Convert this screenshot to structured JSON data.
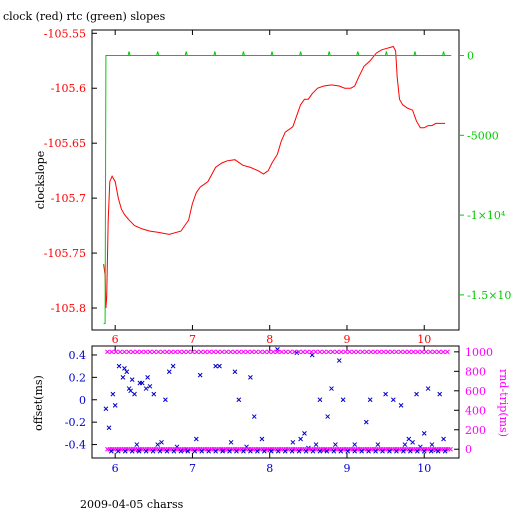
{
  "chart_data": [
    {
      "type": "line",
      "title": "clock (red) rtc (green) slopes",
      "ylabel": "clockslope",
      "xlim": [
        5.7,
        10.45
      ],
      "x_ticks": [
        "6",
        "7",
        "8",
        "9",
        "10"
      ],
      "ylim_left": [
        -105.82,
        -105.547
      ],
      "ylim_right": [
        -17200,
        1600
      ],
      "left_ticks": [
        "-105.55",
        "-105.6",
        "-105.65",
        "-105.7",
        "-105.75",
        "-105.8"
      ],
      "right_ticks": [
        "0",
        "-5000",
        "-1×10⁴",
        "-1.5×10⁴"
      ],
      "colors": {
        "clock": "#ff0000",
        "rtc": "#00cc00"
      },
      "series": [
        {
          "name": "clock",
          "axis": "left",
          "x": [
            5.85,
            5.87,
            5.88,
            5.89,
            5.91,
            5.93,
            5.96,
            6.0,
            6.04,
            6.08,
            6.12,
            6.18,
            6.25,
            6.35,
            6.45,
            6.55,
            6.7,
            6.85,
            6.95,
            7.0,
            7.05,
            7.1,
            7.2,
            7.3,
            7.38,
            7.45,
            7.55,
            7.65,
            7.75,
            7.85,
            7.92,
            7.98,
            8.03,
            8.1,
            8.15,
            8.2,
            8.3,
            8.35,
            8.4,
            8.45,
            8.5,
            8.55,
            8.62,
            8.7,
            8.8,
            8.9,
            8.97,
            9.05,
            9.1,
            9.15,
            9.22,
            9.3,
            9.38,
            9.45,
            9.5,
            9.55,
            9.6,
            9.63,
            9.65,
            9.68,
            9.72,
            9.78,
            9.85,
            9.9,
            9.95,
            10.0,
            10.05,
            10.1,
            10.15,
            10.2,
            10.27
          ],
          "values": [
            -105.76,
            -105.77,
            -105.8,
            -105.79,
            -105.72,
            -105.685,
            -105.68,
            -105.685,
            -105.7,
            -105.71,
            -105.715,
            -105.72,
            -105.725,
            -105.728,
            -105.73,
            -105.731,
            -105.733,
            -105.73,
            -105.72,
            -105.705,
            -105.695,
            -105.69,
            -105.685,
            -105.672,
            -105.668,
            -105.666,
            -105.665,
            -105.67,
            -105.672,
            -105.675,
            -105.678,
            -105.675,
            -105.668,
            -105.66,
            -105.648,
            -105.64,
            -105.635,
            -105.625,
            -105.615,
            -105.61,
            -105.61,
            -105.605,
            -105.6,
            -105.598,
            -105.597,
            -105.598,
            -105.6,
            -105.6,
            -105.598,
            -105.59,
            -105.58,
            -105.575,
            -105.568,
            -105.565,
            -105.564,
            -105.563,
            -105.562,
            -105.566,
            -105.59,
            -105.61,
            -105.615,
            -105.618,
            -105.62,
            -105.63,
            -105.636,
            -105.636,
            -105.634,
            -105.634,
            -105.632,
            -105.632,
            -105.632
          ]
        },
        {
          "name": "rtc",
          "axis": "right",
          "x": [
            5.85,
            5.87,
            5.88,
            5.9,
            10.35
          ],
          "values": [
            -16800,
            -16800,
            0,
            0,
            0
          ]
        }
      ]
    },
    {
      "type": "scatter",
      "xlabel": "2009-04-05 charss",
      "ylabel_left": "offset(ms)",
      "ylabel_right": "rnd-trip(ms)",
      "xlim": [
        5.7,
        10.45
      ],
      "x_ticks": [
        "6",
        "7",
        "8",
        "9",
        "10"
      ],
      "ylim_left": [
        -0.52,
        0.48
      ],
      "ylim_right": [
        -90,
        1060
      ],
      "left_ticks": [
        "0.4",
        "0.2",
        "0",
        "-0.2",
        "-0.4"
      ],
      "right_ticks": [
        "1000",
        "800",
        "600",
        "400",
        "200",
        "0"
      ],
      "colors": {
        "offset": "#0000cc",
        "roundtrip": "#ff00ff"
      },
      "series": [
        {
          "name": "offset",
          "axis": "left",
          "marker": "x",
          "x": [
            5.88,
            5.92,
            5.97,
            6.0,
            6.05,
            6.1,
            6.12,
            6.15,
            6.18,
            6.2,
            6.22,
            6.25,
            6.28,
            6.3,
            6.32,
            6.35,
            6.4,
            6.42,
            6.45,
            6.5,
            6.55,
            6.6,
            6.65,
            6.7,
            6.75,
            6.8,
            6.9,
            7.05,
            7.1,
            7.3,
            7.35,
            7.4,
            7.5,
            7.55,
            7.6,
            7.7,
            7.75,
            7.8,
            7.9,
            8.0,
            8.1,
            8.3,
            8.35,
            8.4,
            8.45,
            8.5,
            8.55,
            8.6,
            8.65,
            8.7,
            8.75,
            8.8,
            8.85,
            8.9,
            8.95,
            9.1,
            9.25,
            9.3,
            9.4,
            9.5,
            9.6,
            9.7,
            9.75,
            9.8,
            9.85,
            9.9,
            9.95,
            10.0,
            10.05,
            10.1,
            10.15,
            10.2,
            10.25
          ],
          "values": [
            -0.08,
            -0.25,
            0.05,
            -0.05,
            0.3,
            0.2,
            0.28,
            0.25,
            0.1,
            0.08,
            0.18,
            0.05,
            -0.4,
            -0.45,
            0.15,
            0.15,
            0.1,
            0.2,
            0.12,
            0.05,
            -0.4,
            -0.38,
            0.0,
            0.25,
            0.3,
            -0.42,
            -0.45,
            -0.35,
            0.22,
            0.3,
            0.3,
            -0.45,
            -0.38,
            0.25,
            0.0,
            -0.42,
            0.2,
            -0.15,
            -0.35,
            -0.45,
            0.45,
            -0.38,
            0.42,
            -0.35,
            -0.3,
            -0.43,
            0.4,
            -0.4,
            0.0,
            -0.45,
            -0.15,
            0.1,
            -0.4,
            0.35,
            0.0,
            -0.4,
            -0.2,
            0.0,
            -0.4,
            0.05,
            0.0,
            -0.05,
            -0.4,
            -0.35,
            -0.38,
            0.05,
            -0.42,
            -0.3,
            0.1,
            -0.4,
            -0.45,
            0.05,
            -0.35
          ]
        },
        {
          "name": "roundtrip",
          "axis": "right",
          "marker": "x",
          "x": [
            5.9,
            6.0,
            6.1,
            6.2,
            6.3,
            6.4,
            6.5,
            6.6,
            6.7,
            6.8,
            6.9,
            7.0,
            7.1,
            7.2,
            7.3,
            7.4,
            7.5,
            7.6,
            7.7,
            7.8,
            7.9,
            8.0,
            8.1,
            8.2,
            8.3,
            8.4,
            8.5,
            8.6,
            8.7,
            8.8,
            8.9,
            9.0,
            9.1,
            9.2,
            9.3,
            9.4,
            9.5,
            9.6,
            9.7,
            9.8,
            9.9,
            10.0,
            10.1,
            10.2,
            10.3
          ],
          "values": [
            1000,
            1000,
            1000,
            1000,
            1000,
            1000,
            1000,
            1000,
            1000,
            1000,
            1000,
            1000,
            1000,
            1000,
            1000,
            1000,
            1000,
            1000,
            1000,
            1000,
            1000,
            1000,
            1000,
            1000,
            1000,
            1000,
            1000,
            1000,
            1000,
            1000,
            1000,
            1000,
            1000,
            1000,
            1000,
            1000,
            1000,
            1000,
            1000,
            1000,
            1000,
            1000,
            1000,
            1000,
            1000
          ],
          "baseline": 0
        }
      ]
    }
  ]
}
